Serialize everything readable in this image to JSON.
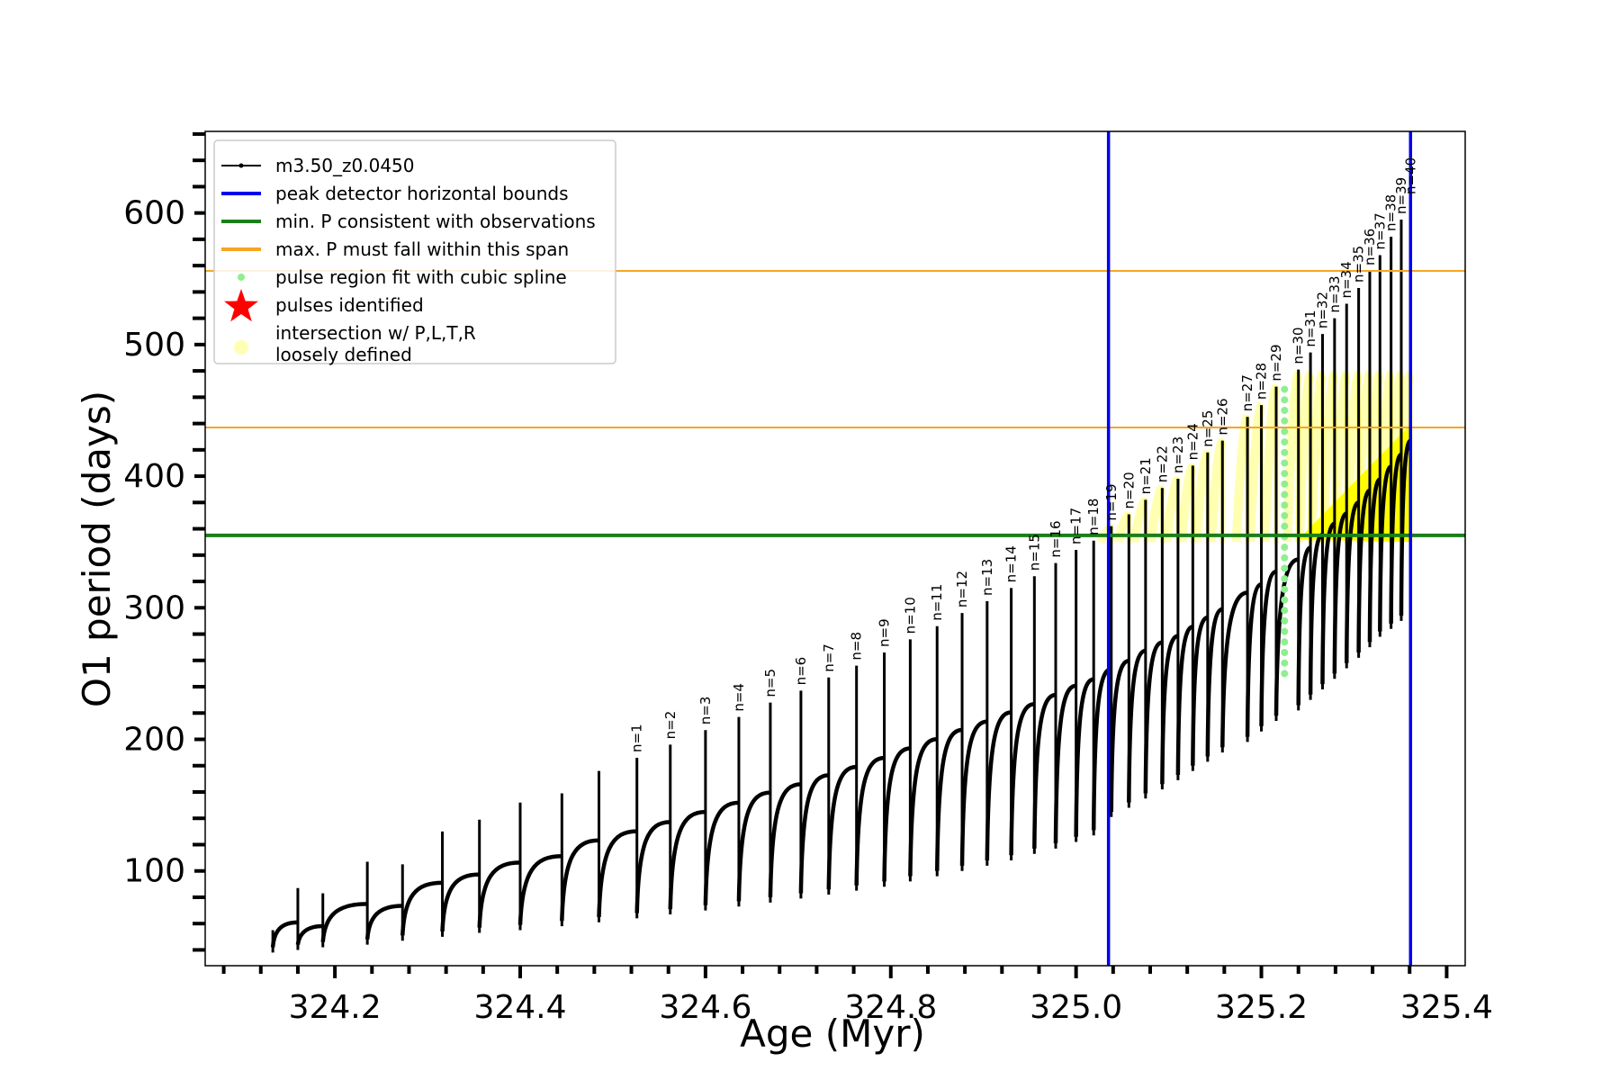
{
  "chart_data": {
    "type": "line",
    "xlabel": "Age (Myr)",
    "ylabel": "O1 period (days)",
    "xlim": [
      324.06,
      325.42
    ],
    "ylim": [
      28,
      662
    ],
    "x_ticks": [
      324.2,
      324.4,
      324.6,
      324.8,
      325.0,
      325.2,
      325.4
    ],
    "x_tick_labels": [
      "324.2",
      "324.4",
      "324.6",
      "324.8",
      "325.0",
      "325.2",
      "325.4"
    ],
    "y_ticks": [
      100,
      200,
      300,
      400,
      500,
      600
    ],
    "y_tick_labels": [
      "100",
      "200",
      "300",
      "400",
      "500",
      "600"
    ],
    "legend": {
      "placement": "upper-left",
      "entries": [
        {
          "label": "m3.50_z0.0450",
          "marker": "line-dot",
          "color": "#000000"
        },
        {
          "label": "peak detector horizontal bounds",
          "marker": "line",
          "color": "#0000ee"
        },
        {
          "label": "min. P consistent with observations",
          "marker": "line",
          "color": "#1a7f1a"
        },
        {
          "label": "max. P must fall within this span",
          "marker": "line",
          "color": "#f5a623"
        },
        {
          "label": "pulse region fit with cubic spline",
          "marker": "dot",
          "color": "#90ee90"
        },
        {
          "label": "pulses identified",
          "marker": "star",
          "color": "#ff0000"
        },
        {
          "label": "intersection w/ P,L,T,R",
          "label2": "loosely defined",
          "marker": "circle",
          "color": "#ffffb3"
        }
      ]
    },
    "vlines": [
      {
        "x": 325.035,
        "color": "#0000ee",
        "series": "peak detector horizontal bounds"
      },
      {
        "x": 325.361,
        "color": "#0000ee",
        "series": "peak detector horizontal bounds"
      }
    ],
    "hlines": [
      {
        "y": 355,
        "color": "#1a7f1a",
        "series": "min. P consistent with observations"
      },
      {
        "y": 437,
        "color": "#f5a623",
        "series": "max. P must fall within this span"
      },
      {
        "y": 556,
        "color": "#f5a623",
        "series": "max. P must fall within this span"
      }
    ],
    "spline_region": {
      "x": 325.225,
      "y_min": 250,
      "y_max": 470,
      "color": "#90ee90"
    },
    "intersection_region": {
      "x_start": 325.24,
      "x_end": 325.362,
      "y_floor": 352,
      "y_end_top": 440,
      "upper_band_y": [
        350,
        478
      ],
      "color": "#ffff00"
    },
    "pulses": [
      {
        "age": 324.133,
        "peak": 55,
        "trough": 38,
        "label": ""
      },
      {
        "age": 324.16,
        "peak": 87,
        "trough": 40,
        "label": ""
      },
      {
        "age": 324.187,
        "peak": 83,
        "trough": 42,
        "label": ""
      },
      {
        "age": 324.235,
        "peak": 107,
        "trough": 44,
        "label": ""
      },
      {
        "age": 324.273,
        "peak": 105,
        "trough": 47,
        "label": ""
      },
      {
        "age": 324.316,
        "peak": 130,
        "trough": 50,
        "label": ""
      },
      {
        "age": 324.356,
        "peak": 139,
        "trough": 53,
        "label": ""
      },
      {
        "age": 324.4,
        "peak": 152,
        "trough": 55,
        "label": ""
      },
      {
        "age": 324.445,
        "peak": 159,
        "trough": 58,
        "label": ""
      },
      {
        "age": 324.485,
        "peak": 176,
        "trough": 61,
        "label": ""
      },
      {
        "age": 324.526,
        "peak": 186,
        "trough": 64,
        "label": "n=1"
      },
      {
        "age": 324.562,
        "peak": 196,
        "trough": 67,
        "label": "n=2"
      },
      {
        "age": 324.6,
        "peak": 207,
        "trough": 70,
        "label": "n=3"
      },
      {
        "age": 324.636,
        "peak": 217,
        "trough": 73,
        "label": "n=4"
      },
      {
        "age": 324.67,
        "peak": 228,
        "trough": 76,
        "label": "n=5"
      },
      {
        "age": 324.703,
        "peak": 237,
        "trough": 79,
        "label": "n=6"
      },
      {
        "age": 324.733,
        "peak": 247,
        "trough": 82,
        "label": "n=7"
      },
      {
        "age": 324.763,
        "peak": 256,
        "trough": 85,
        "label": "n=8"
      },
      {
        "age": 324.793,
        "peak": 266,
        "trough": 88,
        "label": "n=9"
      },
      {
        "age": 324.821,
        "peak": 276,
        "trough": 92,
        "label": "n=10"
      },
      {
        "age": 324.85,
        "peak": 286,
        "trough": 96,
        "label": "n=11"
      },
      {
        "age": 324.877,
        "peak": 296,
        "trough": 100,
        "label": "n=12"
      },
      {
        "age": 324.904,
        "peak": 305,
        "trough": 104,
        "label": "n=13"
      },
      {
        "age": 324.93,
        "peak": 315,
        "trough": 108,
        "label": "n=14"
      },
      {
        "age": 324.955,
        "peak": 324,
        "trough": 113,
        "label": "n=15"
      },
      {
        "age": 324.978,
        "peak": 334,
        "trough": 117,
        "label": "n=16"
      },
      {
        "age": 325.0,
        "peak": 344,
        "trough": 122,
        "label": "n=17"
      },
      {
        "age": 325.019,
        "peak": 351,
        "trough": 127,
        "label": "n=18"
      },
      {
        "age": 325.038,
        "peak": 362,
        "trough": 141,
        "label": "n=19"
      },
      {
        "age": 325.057,
        "peak": 371,
        "trough": 148,
        "label": "n=20"
      },
      {
        "age": 325.075,
        "peak": 382,
        "trough": 155,
        "label": "n=21"
      },
      {
        "age": 325.093,
        "peak": 391,
        "trough": 162,
        "label": "n=22"
      },
      {
        "age": 325.11,
        "peak": 398,
        "trough": 169,
        "label": "n=23"
      },
      {
        "age": 325.126,
        "peak": 408,
        "trough": 176,
        "label": "n=24"
      },
      {
        "age": 325.142,
        "peak": 418,
        "trough": 183,
        "label": "n=25"
      },
      {
        "age": 325.158,
        "peak": 427,
        "trough": 190,
        "label": "n=26"
      },
      {
        "age": 325.185,
        "peak": 445,
        "trough": 198,
        "label": "n=27"
      },
      {
        "age": 325.2,
        "peak": 454,
        "trough": 206,
        "label": "n=28"
      },
      {
        "age": 325.216,
        "peak": 468,
        "trough": 214,
        "label": "n=29"
      },
      {
        "age": 325.24,
        "peak": 481,
        "trough": 222,
        "label": "n=30"
      },
      {
        "age": 325.253,
        "peak": 494,
        "trough": 230,
        "label": "n=31"
      },
      {
        "age": 325.266,
        "peak": 508,
        "trough": 238,
        "label": "n=32"
      },
      {
        "age": 325.279,
        "peak": 520,
        "trough": 246,
        "label": "n=33"
      },
      {
        "age": 325.292,
        "peak": 531,
        "trough": 254,
        "label": "n=34"
      },
      {
        "age": 325.305,
        "peak": 543,
        "trough": 262,
        "label": "n=35"
      },
      {
        "age": 325.317,
        "peak": 556,
        "trough": 270,
        "label": "n=36"
      },
      {
        "age": 325.328,
        "peak": 568,
        "trough": 278,
        "label": "n=37"
      },
      {
        "age": 325.34,
        "peak": 582,
        "trough": 284,
        "label": "n=38"
      },
      {
        "age": 325.351,
        "peak": 595,
        "trough": 290,
        "label": "n=39"
      },
      {
        "age": 325.361,
        "peak": 610,
        "trough": 296,
        "label": "n=40"
      }
    ]
  }
}
